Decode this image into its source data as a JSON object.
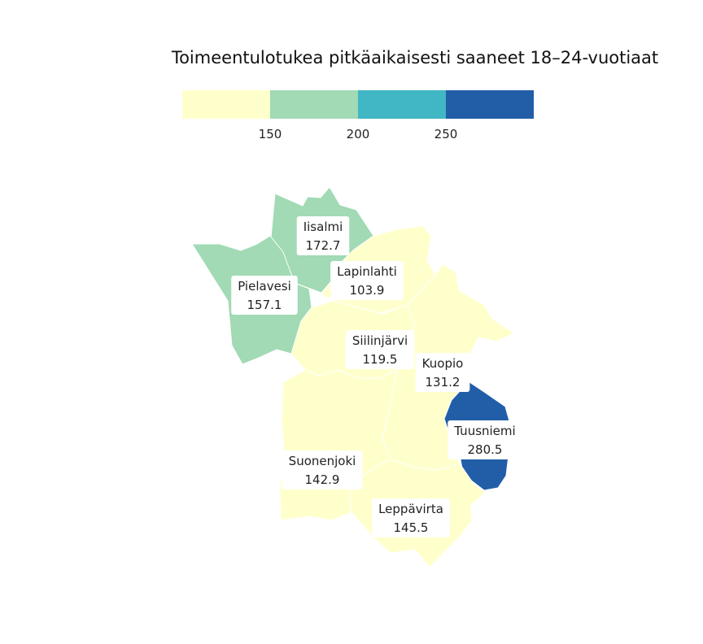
{
  "title": "Toimeentulotukea pitkäaikaisesti saaneet 18–24-vuotiaat",
  "legend": {
    "bins": [
      {
        "color": "#ffffcc"
      },
      {
        "color": "#a1dab4"
      },
      {
        "color": "#41b6c4"
      },
      {
        "color": "#225ea8"
      }
    ],
    "ticks": [
      "150",
      "200",
      "250"
    ]
  },
  "chart_data": {
    "type": "choropleth",
    "thresholds": [
      150,
      200,
      250
    ],
    "regions": [
      {
        "name": "Iisalmi",
        "value": 172.7
      },
      {
        "name": "Pielavesi",
        "value": 157.1
      },
      {
        "name": "Lapinlahti",
        "value": 103.9
      },
      {
        "name": "Siilinjärvi",
        "value": 119.5
      },
      {
        "name": "Kuopio",
        "value": 131.2
      },
      {
        "name": "Tuusniemi",
        "value": 280.5
      },
      {
        "name": "Suonenjoki",
        "value": 142.9
      },
      {
        "name": "Leppävirta",
        "value": 145.5
      }
    ]
  }
}
